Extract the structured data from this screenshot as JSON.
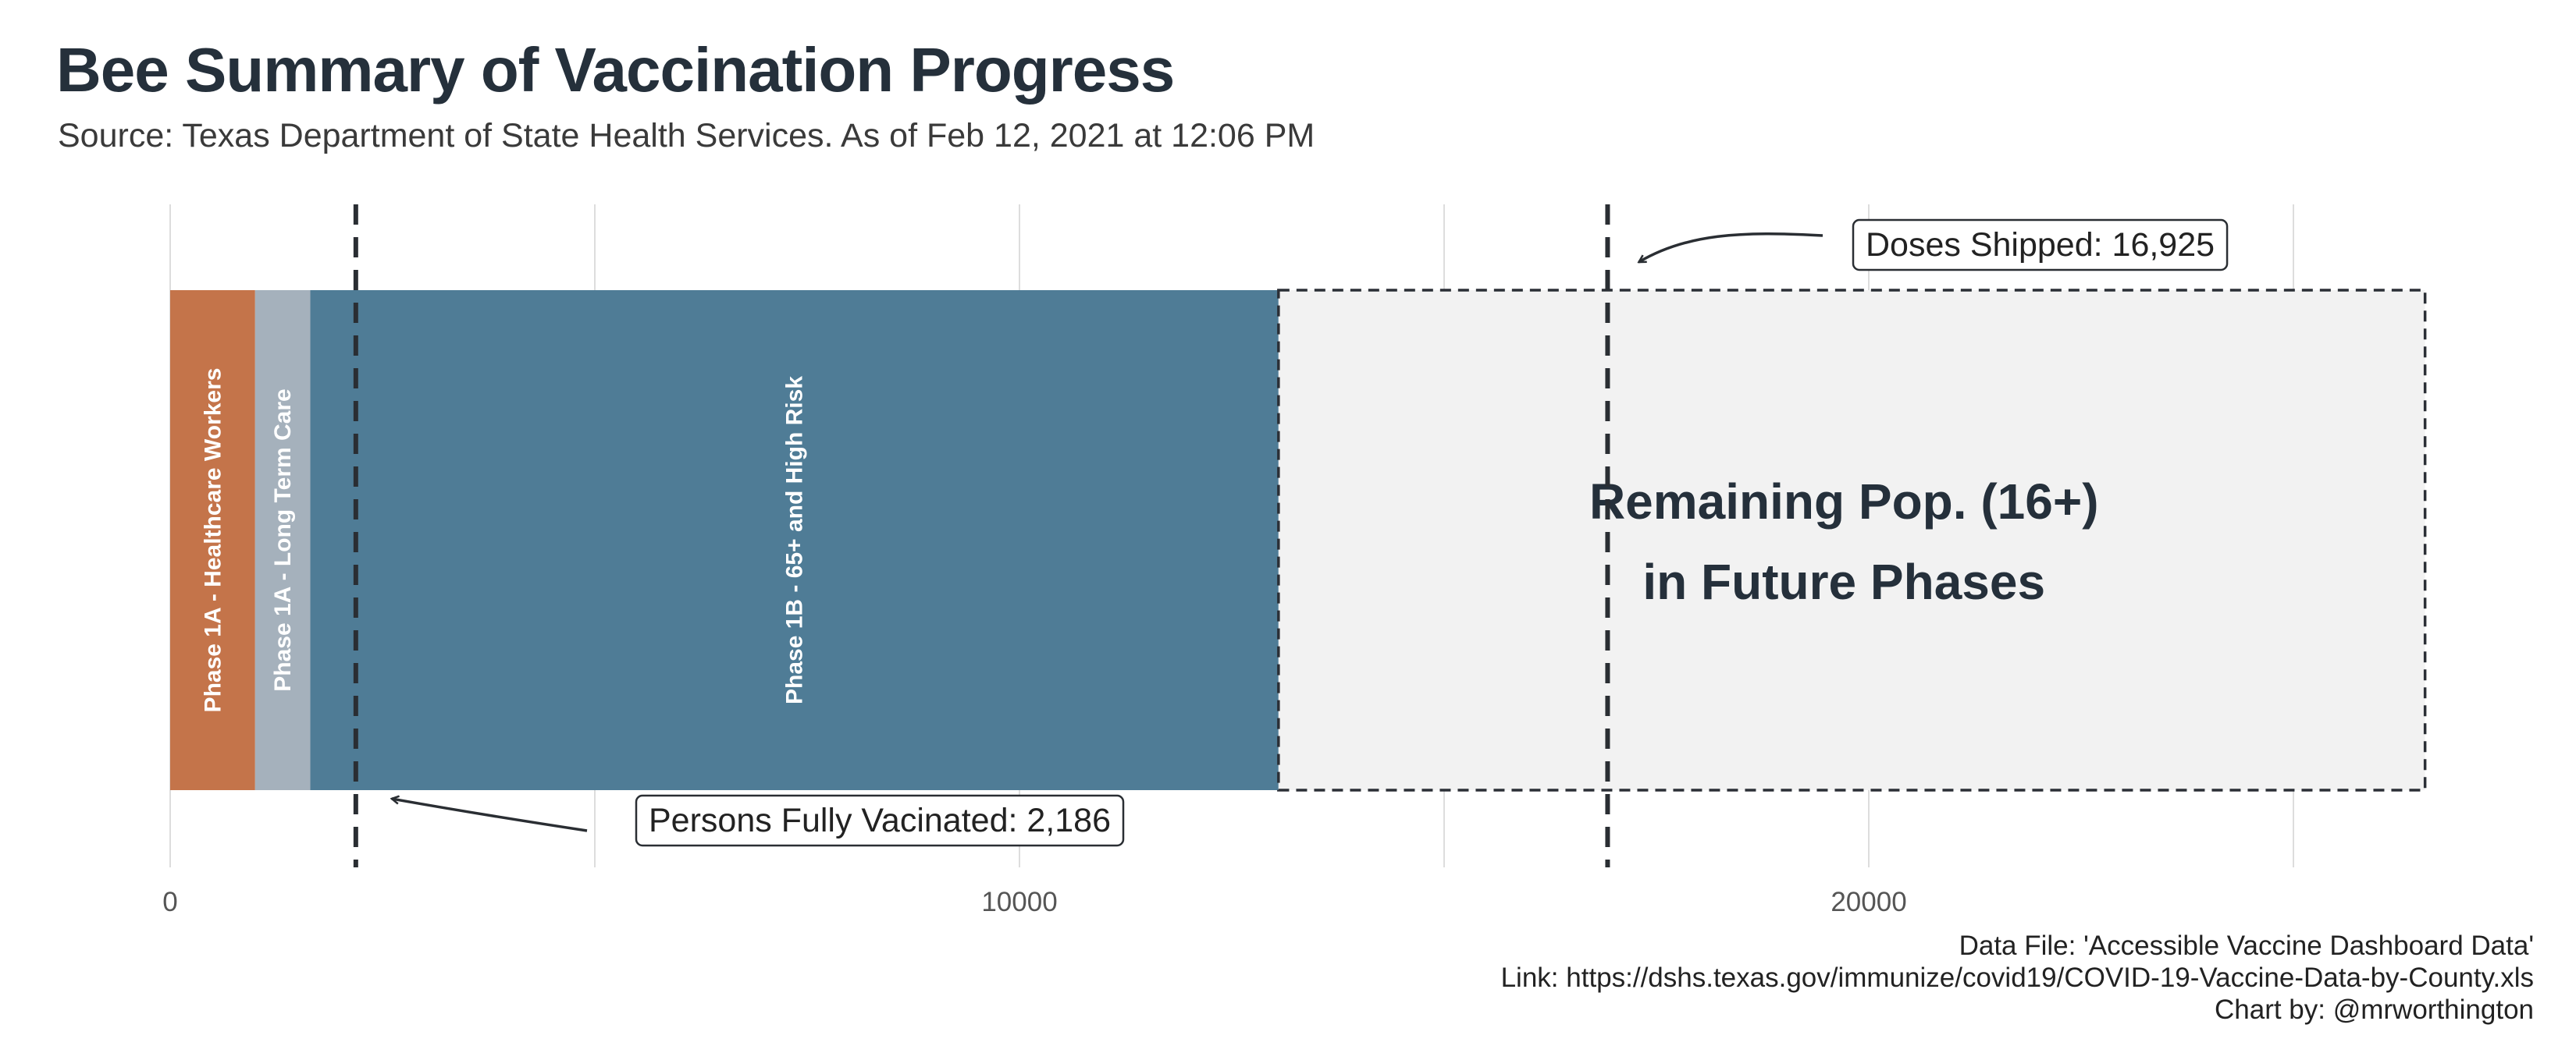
{
  "title": "Bee Summary of Vaccination Progress",
  "subtitle": "Source: Texas Department of State Health Services. As of Feb 12, 2021 at 12:06 PM",
  "caption": [
    "Data File: 'Accessible Vaccine Dashboard Data'",
    "Link: https://dshs.texas.gov/immunize/covid19/COVID-19-Vaccine-Data-by-County.xls",
    "Chart by: @mrworthington"
  ],
  "chart_data": {
    "type": "bar",
    "orientation": "horizontal-stacked",
    "xlim": [
      0,
      27500
    ],
    "x_ticks": [
      0,
      10000,
      20000
    ],
    "x_gridlines": [
      0,
      5000,
      10000,
      15000,
      20000,
      25000
    ],
    "grid": true,
    "segments": [
      {
        "label": "Phase 1A - Healthcare Workers",
        "start": 0,
        "end": 1000,
        "color": "#c4744a"
      },
      {
        "label": "Phase 1A - Long Term Care",
        "start": 1000,
        "end": 1650,
        "color": "#a5b1bc"
      },
      {
        "label": "Phase 1B - 65+ and High Risk",
        "start": 1650,
        "end": 13050,
        "color": "#4f7c96"
      }
    ],
    "remaining": {
      "label_line1": "Remaining Pop. (16+)",
      "label_line2": "in Future Phases",
      "start": 13050,
      "end": 26550,
      "fill": "#f2f2f2",
      "stroke": "#2b2f36"
    },
    "reference_lines": [
      {
        "name": "persons_fully_vaccinated",
        "value": 2186,
        "label": "Persons Fully Vacinated: 2,186",
        "label_position": "bottom"
      },
      {
        "name": "doses_shipped",
        "value": 16925,
        "label": "Doses Shipped: 16,925",
        "label_position": "top"
      }
    ],
    "colors": {
      "reference_line": "#2a2e33",
      "grid": "#dddddd",
      "axis_text": "#555555",
      "segment_text": "#ffffff",
      "remaining_text": "#25303b"
    }
  }
}
